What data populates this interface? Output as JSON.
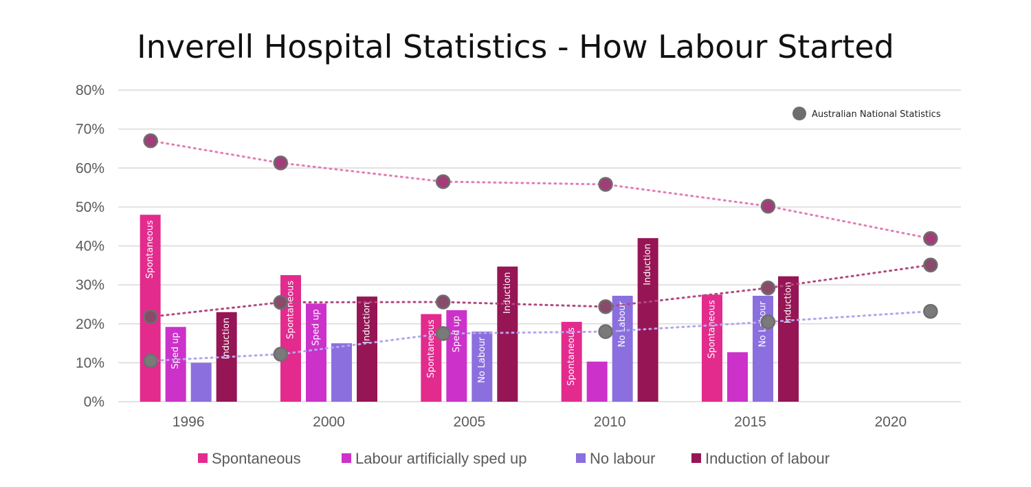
{
  "chart_data": {
    "type": "bar",
    "title": "Inverell Hospital Statistics  - How Labour Started",
    "xlabel": "",
    "ylabel": "",
    "ylim": [
      0,
      80
    ],
    "y_ticks": [
      "0%",
      "10%",
      "20%",
      "30%",
      "40%",
      "50%",
      "60%",
      "70%",
      "80%"
    ],
    "grid": true,
    "categories": [
      "1996",
      "2000",
      "2005",
      "2010",
      "2015",
      "2020"
    ],
    "series": [
      {
        "name": "Spontaneous",
        "color": "#e32b8e",
        "values": [
          48,
          32.5,
          22.5,
          20.5,
          27.5,
          null
        ],
        "labels": [
          "Spontaneous",
          "Spontaneous",
          "Spontaneous",
          "Spontaneous",
          "Spontaneous",
          ""
        ]
      },
      {
        "name": "Labour artificially sped up",
        "color": "#cc32c9",
        "values": [
          19.2,
          25.2,
          23.5,
          10.3,
          12.7,
          null
        ],
        "labels": [
          "Sped up",
          "Sped up",
          "Sped up",
          "",
          "",
          ""
        ]
      },
      {
        "name": "No labour",
        "color": "#8b6fde",
        "values": [
          10,
          15,
          18,
          27.2,
          27.2,
          null
        ],
        "labels": [
          "",
          "",
          "No Labour",
          "No Labour",
          "No Labour",
          ""
        ]
      },
      {
        "name": "Induction of labour",
        "color": "#961555",
        "values": [
          23,
          27,
          34.7,
          42,
          32.2,
          null
        ],
        "labels": [
          "Induction",
          "Induction",
          "Induction",
          "Induction",
          "Induction",
          ""
        ]
      }
    ],
    "national_series": [
      {
        "name": "Spontaneous (national)",
        "line_color": "#e07fb3",
        "points": [
          {
            "x": 1996,
            "y": 67
          },
          {
            "x": 2000,
            "y": 61.3
          },
          {
            "x": 2005,
            "y": 56.5
          },
          {
            "x": 2010,
            "y": 55.8
          },
          {
            "x": 2015,
            "y": 50.2
          },
          {
            "x": 2020,
            "y": 41.9
          }
        ],
        "dot_fill": "#a23d79"
      },
      {
        "name": "Induction (national)",
        "line_color": "#b0497e",
        "points": [
          {
            "x": 1996,
            "y": 21.8
          },
          {
            "x": 2000,
            "y": 25.5
          },
          {
            "x": 2005,
            "y": 25.6
          },
          {
            "x": 2010,
            "y": 24.4
          },
          {
            "x": 2015,
            "y": 29.2
          },
          {
            "x": 2020,
            "y": 35.1
          }
        ],
        "dot_fill": "#8a4a6a"
      },
      {
        "name": "No labour (national)",
        "line_color": "#b3a6ec",
        "points": [
          {
            "x": 1996,
            "y": 10.5
          },
          {
            "x": 2000,
            "y": 12.2
          },
          {
            "x": 2005,
            "y": 17.5
          },
          {
            "x": 2010,
            "y": 18
          },
          {
            "x": 2015,
            "y": 20.5
          },
          {
            "x": 2020,
            "y": 23.2
          }
        ],
        "dot_fill": "#7a7a7a"
      }
    ],
    "national_legend": "Australian National Statistics",
    "legend_position": "bottom",
    "national_legend_position": "top-right"
  }
}
